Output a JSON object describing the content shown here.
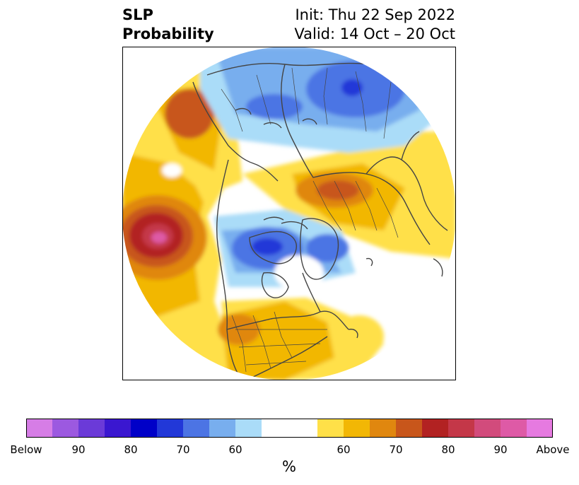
{
  "header": {
    "title_line1": "SLP",
    "title_line2": "Probability",
    "init": "Init: Thu 22 Sep 2022",
    "valid": "Valid: 14 Oct – 20 Oct"
  },
  "colorbar": {
    "unit": "%",
    "left_end_label": "Below",
    "right_end_label": "Above",
    "tick_labels": [
      "Below",
      "90",
      "80",
      "70",
      "60",
      "60",
      "70",
      "80",
      "90",
      "Above"
    ],
    "below_colors": [
      "#d67de6",
      "#9c59e0",
      "#6b3ad8",
      "#3a17d0",
      "#0000c8",
      "#2238d8",
      "#4c74e4",
      "#78aeee",
      "#aadcf8"
    ],
    "neutral_color": "#ffffff",
    "above_colors": [
      "#ffe048",
      "#f2b705",
      "#e0870f",
      "#c8561b",
      "#b22222",
      "#c43748",
      "#d24b7c",
      "#de5aa6",
      "#e67ae0"
    ]
  },
  "map": {
    "projection": "north-polar-stereographic",
    "colors": {
      "land_outline": "#444444",
      "frame": "#000000"
    }
  }
}
